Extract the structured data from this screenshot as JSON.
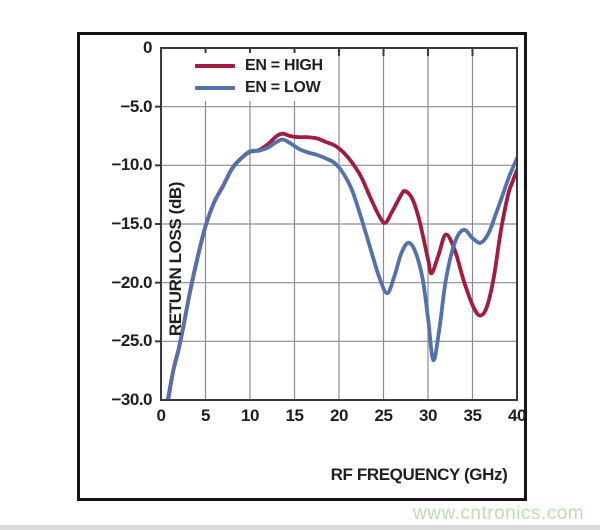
{
  "watermark": {
    "text": "www.cntronics.com",
    "color": "#bedcb6"
  },
  "chart_data": {
    "type": "line",
    "title": "",
    "xlabel": "RF FREQUENCY (GHz)",
    "ylabel": "RETURN LOSS (dB)",
    "xlim": [
      0,
      40
    ],
    "ylim": [
      -30,
      0
    ],
    "grid": true,
    "legend_position": "top-left-inside",
    "axis_color": "#3a3a3a",
    "grid_color": "#8c8c8c",
    "frame_color": "#141414",
    "x_tick_values": [
      0,
      5,
      10,
      15,
      20,
      25,
      30,
      35,
      40
    ],
    "x_tick_labels": [
      "0",
      "5",
      "10",
      "15",
      "20",
      "25",
      "30",
      "35",
      "40"
    ],
    "y_tick_values": [
      0,
      -5,
      -10,
      -15,
      -20,
      -25,
      -30
    ],
    "y_tick_labels": [
      "0",
      "−5.0",
      "−10.0",
      "−15.0",
      "−20.0",
      "−25.0",
      "−30.0"
    ],
    "series": [
      {
        "name": "EN = HIGH",
        "color": "#a21c40",
        "points": [
          [
            0.8,
            -30
          ],
          [
            1.4,
            -27.4
          ],
          [
            2,
            -25.6
          ],
          [
            2.6,
            -23.4
          ],
          [
            3.2,
            -21
          ],
          [
            4,
            -18.2
          ],
          [
            5,
            -15.2
          ],
          [
            6,
            -13.1
          ],
          [
            7,
            -11.7
          ],
          [
            8,
            -10.25
          ],
          [
            9,
            -9.4
          ],
          [
            10,
            -8.85
          ],
          [
            11,
            -8.7
          ],
          [
            12,
            -8.2
          ],
          [
            13,
            -7.5
          ],
          [
            13.7,
            -7.3
          ],
          [
            14.5,
            -7.5
          ],
          [
            15.5,
            -7.6
          ],
          [
            16.5,
            -7.6
          ],
          [
            17.5,
            -7.7
          ],
          [
            18.5,
            -8.0
          ],
          [
            19.5,
            -8.3
          ],
          [
            20.5,
            -8.9
          ],
          [
            21.5,
            -9.8
          ],
          [
            22.5,
            -11.0
          ],
          [
            23.5,
            -12.7
          ],
          [
            24.5,
            -14.3
          ],
          [
            25.2,
            -14.9
          ],
          [
            26,
            -13.9
          ],
          [
            27,
            -12.5
          ],
          [
            27.4,
            -12.2
          ],
          [
            28.2,
            -12.8
          ],
          [
            29,
            -14.6
          ],
          [
            30,
            -18.0
          ],
          [
            30.4,
            -19.2
          ],
          [
            31.2,
            -17.6
          ],
          [
            32,
            -15.9
          ],
          [
            33,
            -17.2
          ],
          [
            34,
            -19.8
          ],
          [
            35,
            -21.9
          ],
          [
            35.8,
            -22.8
          ],
          [
            36.6,
            -22.1
          ],
          [
            37.4,
            -19.5
          ],
          [
            38.2,
            -15.5
          ],
          [
            39,
            -12.5
          ],
          [
            39.5,
            -11.4
          ],
          [
            40,
            -10.4
          ]
        ]
      },
      {
        "name": "EN = LOW",
        "color": "#5571ac",
        "points": [
          [
            0.75,
            -30
          ],
          [
            1.35,
            -27.6
          ],
          [
            1.95,
            -25.8
          ],
          [
            2.55,
            -23.6
          ],
          [
            3.15,
            -21.2
          ],
          [
            3.95,
            -18.4
          ],
          [
            4.95,
            -15.3
          ],
          [
            5.95,
            -13.2
          ],
          [
            6.95,
            -11.8
          ],
          [
            7.95,
            -10.35
          ],
          [
            8.95,
            -9.45
          ],
          [
            10,
            -8.8
          ],
          [
            11,
            -8.75
          ],
          [
            12,
            -8.5
          ],
          [
            13,
            -8.0
          ],
          [
            13.7,
            -7.8
          ],
          [
            14.5,
            -8.1
          ],
          [
            15.5,
            -8.6
          ],
          [
            16.5,
            -8.9
          ],
          [
            17.5,
            -9.1
          ],
          [
            18.5,
            -9.4
          ],
          [
            19.5,
            -9.8
          ],
          [
            20.5,
            -10.7
          ],
          [
            21.5,
            -12.2
          ],
          [
            22.5,
            -14.5
          ],
          [
            23.5,
            -17.0
          ],
          [
            24.5,
            -19.5
          ],
          [
            25.4,
            -20.9
          ],
          [
            26.2,
            -19.5
          ],
          [
            27,
            -17.5
          ],
          [
            27.8,
            -16.6
          ],
          [
            28.6,
            -17.4
          ],
          [
            29.4,
            -19.7
          ],
          [
            30,
            -23.0
          ],
          [
            30.6,
            -26.6
          ],
          [
            31.3,
            -23.8
          ],
          [
            32,
            -19.8
          ],
          [
            33,
            -16.6
          ],
          [
            34,
            -15.5
          ],
          [
            35,
            -16.2
          ],
          [
            35.9,
            -16.6
          ],
          [
            36.8,
            -15.8
          ],
          [
            37.6,
            -14.2
          ],
          [
            38.4,
            -12.5
          ],
          [
            39.2,
            -10.8
          ],
          [
            40,
            -9.4
          ]
        ]
      }
    ]
  }
}
